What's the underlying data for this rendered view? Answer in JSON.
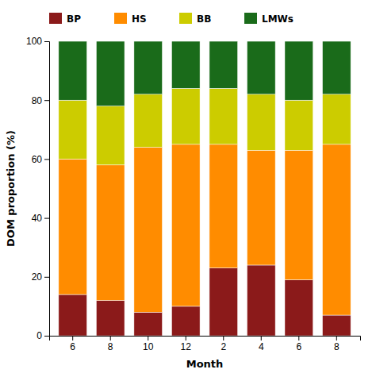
{
  "chart_data": {
    "type": "bar",
    "stacked": true,
    "xlabel": "Month",
    "ylabel": "DOM proportion  (%)",
    "categories": [
      "6",
      "8",
      "10",
      "12",
      "2",
      "4",
      "6",
      "8"
    ],
    "series": [
      {
        "name": "BP",
        "color": "#8B1A1A",
        "values": [
          14,
          12,
          8,
          10,
          23,
          24,
          19,
          7
        ]
      },
      {
        "name": "HS",
        "color": "#FF8C00",
        "values": [
          46,
          46,
          56,
          55,
          42,
          39,
          44,
          58
        ]
      },
      {
        "name": "BB",
        "color": "#CCCC00",
        "values": [
          20,
          20,
          18,
          19,
          19,
          19,
          17,
          17
        ]
      },
      {
        "name": "LMWs",
        "color": "#1A6B1A",
        "values": [
          20,
          22,
          18,
          16,
          16,
          18,
          20,
          18
        ]
      }
    ],
    "ylim": [
      0,
      100
    ],
    "yticks": [
      0,
      20,
      40,
      60,
      80,
      100
    ],
    "grid": false,
    "legend": "top"
  }
}
